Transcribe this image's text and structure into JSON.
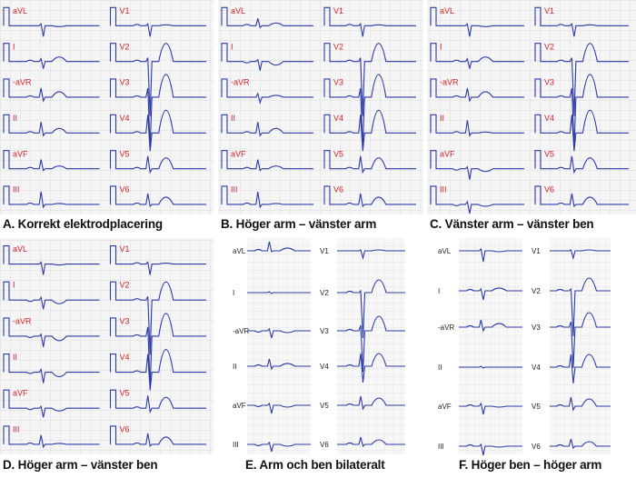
{
  "colors": {
    "trace": "#2b3aa8",
    "label_red": "#d2232a",
    "grid": "#d9d9d9",
    "grid_bg": "#f5f5f5"
  },
  "panels": [
    {
      "id": "A",
      "caption": "A. Korrekt elektrodplacering",
      "left_leads": [
        "aVL",
        "I",
        "-aVR",
        "II",
        "aVF",
        "III"
      ],
      "right_leads": [
        "V1",
        "V2",
        "V3",
        "V4",
        "V5",
        "V6"
      ]
    },
    {
      "id": "B",
      "caption": "B. Höger arm – vänster arm",
      "left_leads": [
        "aVL",
        "I",
        "-aVR",
        "II",
        "aVF",
        "III"
      ],
      "right_leads": [
        "V1",
        "V2",
        "V3",
        "V4",
        "V5",
        "V6"
      ]
    },
    {
      "id": "C",
      "caption": "C. Vänster arm – vänster ben",
      "left_leads": [
        "aVL",
        "I",
        "-aVR",
        "II",
        "aVF",
        "III"
      ],
      "right_leads": [
        "V1",
        "V2",
        "V3",
        "V4",
        "V5",
        "V6"
      ]
    },
    {
      "id": "D",
      "caption": "D. Höger arm – vänster ben",
      "left_leads": [
        "aVL",
        "I",
        "-aVR",
        "II",
        "aVF",
        "III"
      ],
      "right_leads": [
        "V1",
        "V2",
        "V3",
        "V4",
        "V5",
        "V6"
      ]
    },
    {
      "id": "E",
      "caption": "E. Arm och ben bilateralt",
      "left_leads": [
        "aVL",
        "I",
        "-aVR",
        "II",
        "aVF",
        "III"
      ],
      "right_leads": [
        "V1",
        "V2",
        "V3",
        "V4",
        "V5",
        "V6"
      ]
    },
    {
      "id": "F",
      "caption": "F. Höger ben – höger arm",
      "left_leads": [
        "aVL",
        "I",
        "-aVR",
        "II",
        "aVF",
        "III"
      ],
      "right_leads": [
        "V1",
        "V2",
        "V3",
        "V4",
        "V5",
        "V6"
      ]
    }
  ]
}
